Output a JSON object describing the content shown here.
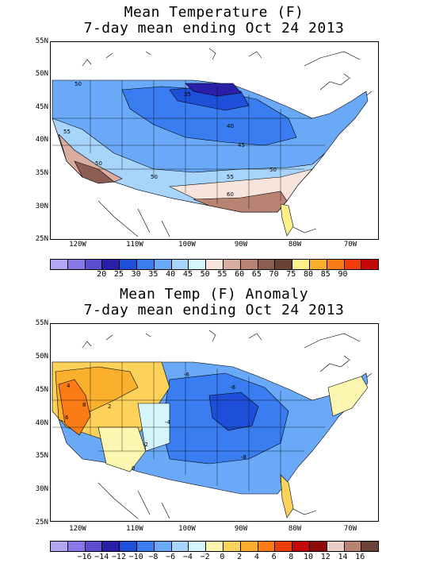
{
  "panels": [
    {
      "title_line1": "Mean Temperature (F)",
      "title_line2": "7-day mean ending Oct 24 2013",
      "lat_labels": [
        "55N",
        "50N",
        "45N",
        "40N",
        "35N",
        "30N",
        "25N"
      ],
      "lon_labels": [
        "120W",
        "110W",
        "100W",
        "90W",
        "80W",
        "70W"
      ],
      "colorbar_colors": [
        "#b3a6f2",
        "#8878e6",
        "#5b4fd0",
        "#2a1fa8",
        "#1e4fd8",
        "#3a7df0",
        "#6aa9f7",
        "#a6d4fb",
        "#d4f5fb",
        "#f7e4dc",
        "#d9aea1",
        "#b98374",
        "#8c5d52",
        "#6b4238",
        "#fdf08a",
        "#fbb02d",
        "#fb7b14",
        "#f03d0a",
        "#c4080a"
      ],
      "colorbar_labels": [
        "20",
        "25",
        "30",
        "35",
        "40",
        "45",
        "50",
        "55",
        "60",
        "65",
        "70",
        "75",
        "80",
        "85",
        "90"
      ],
      "contour_labels": [
        "50",
        "35",
        "55",
        "40",
        "45",
        "50",
        "50",
        "55",
        "50",
        "60"
      ]
    },
    {
      "title_line1": "Mean Temp (F) Anomaly",
      "title_line2": "7-day mean ending Oct 24 2013",
      "lat_labels": [
        "55N",
        "50N",
        "45N",
        "40N",
        "35N",
        "30N",
        "25N"
      ],
      "lon_labels": [
        "120W",
        "110W",
        "100W",
        "90W",
        "80W",
        "70W"
      ],
      "colorbar_colors": [
        "#b3a6f2",
        "#8878e6",
        "#5b4fd0",
        "#2a1fa8",
        "#1e4fd8",
        "#3a7df0",
        "#6aa9f7",
        "#a6d4fb",
        "#d4f5fb",
        "#fdf6b0",
        "#fcd25a",
        "#fbb02d",
        "#fb7b14",
        "#f03d0a",
        "#c4080a",
        "#8c0a0a",
        "#e9d0c8",
        "#b98374",
        "#6b4238"
      ],
      "colorbar_labels": [
        "−16",
        "−14",
        "−12",
        "−10",
        "−8",
        "−6",
        "−4",
        "−2",
        "0",
        "2",
        "4",
        "6",
        "8",
        "10",
        "12",
        "14",
        "16"
      ],
      "contour_labels": [
        "4",
        "2",
        "6",
        "8",
        "-6",
        "-8",
        "-4",
        "-2",
        "-8",
        "0"
      ]
    }
  ]
}
